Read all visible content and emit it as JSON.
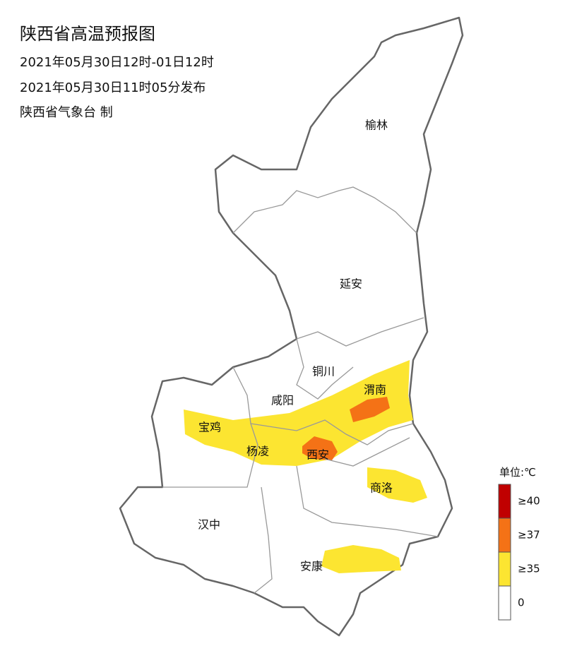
{
  "header": {
    "title": "陕西省高温预报图",
    "period": "2021年05月30日12时-01日12时",
    "issued": "2021年05月30日11时05分发布",
    "issuer": "陕西省气象台 制"
  },
  "cities": [
    "榆林",
    "延安",
    "铜川",
    "咸阳",
    "渭南",
    "宝鸡",
    "杨凌",
    "西安",
    "商洛",
    "汉中",
    "安康"
  ],
  "legend": {
    "unit": "单位:℃",
    "items": [
      {
        "label": "≥40",
        "color": "#c00000"
      },
      {
        "label": "≥37",
        "color": "#f47216"
      },
      {
        "label": "≥35",
        "color": "#fce531"
      },
      {
        "label": "0",
        "color": "#ffffff"
      }
    ]
  }
}
